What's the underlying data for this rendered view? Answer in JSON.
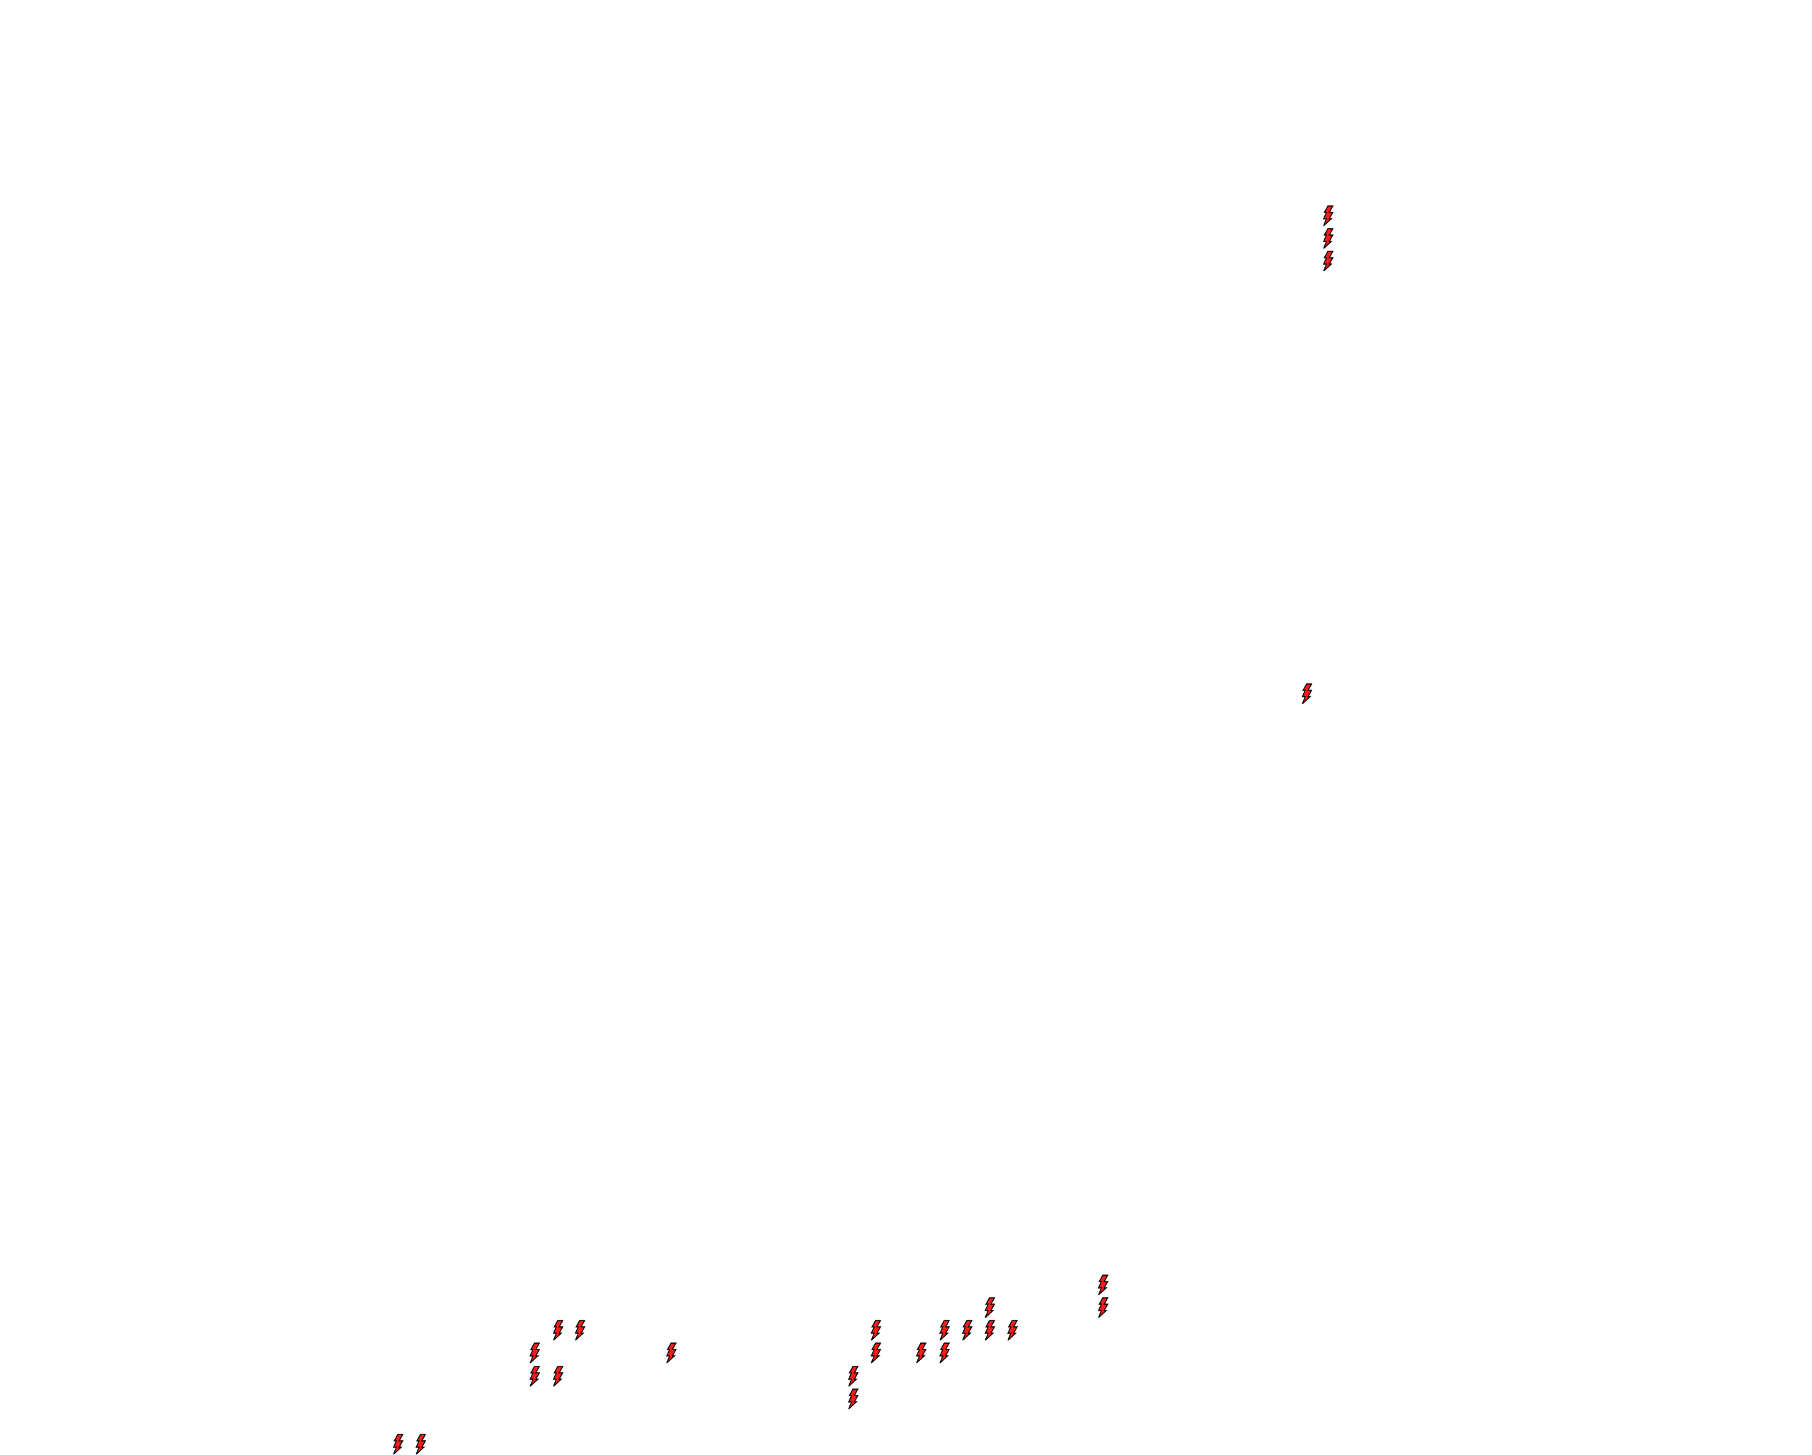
{
  "map": {
    "background_color": "#ffffff",
    "marker_icon": "lightning-bolt-icon",
    "marker_fill": "#ff1a1a",
    "marker_stroke": "#000000"
  }
}
